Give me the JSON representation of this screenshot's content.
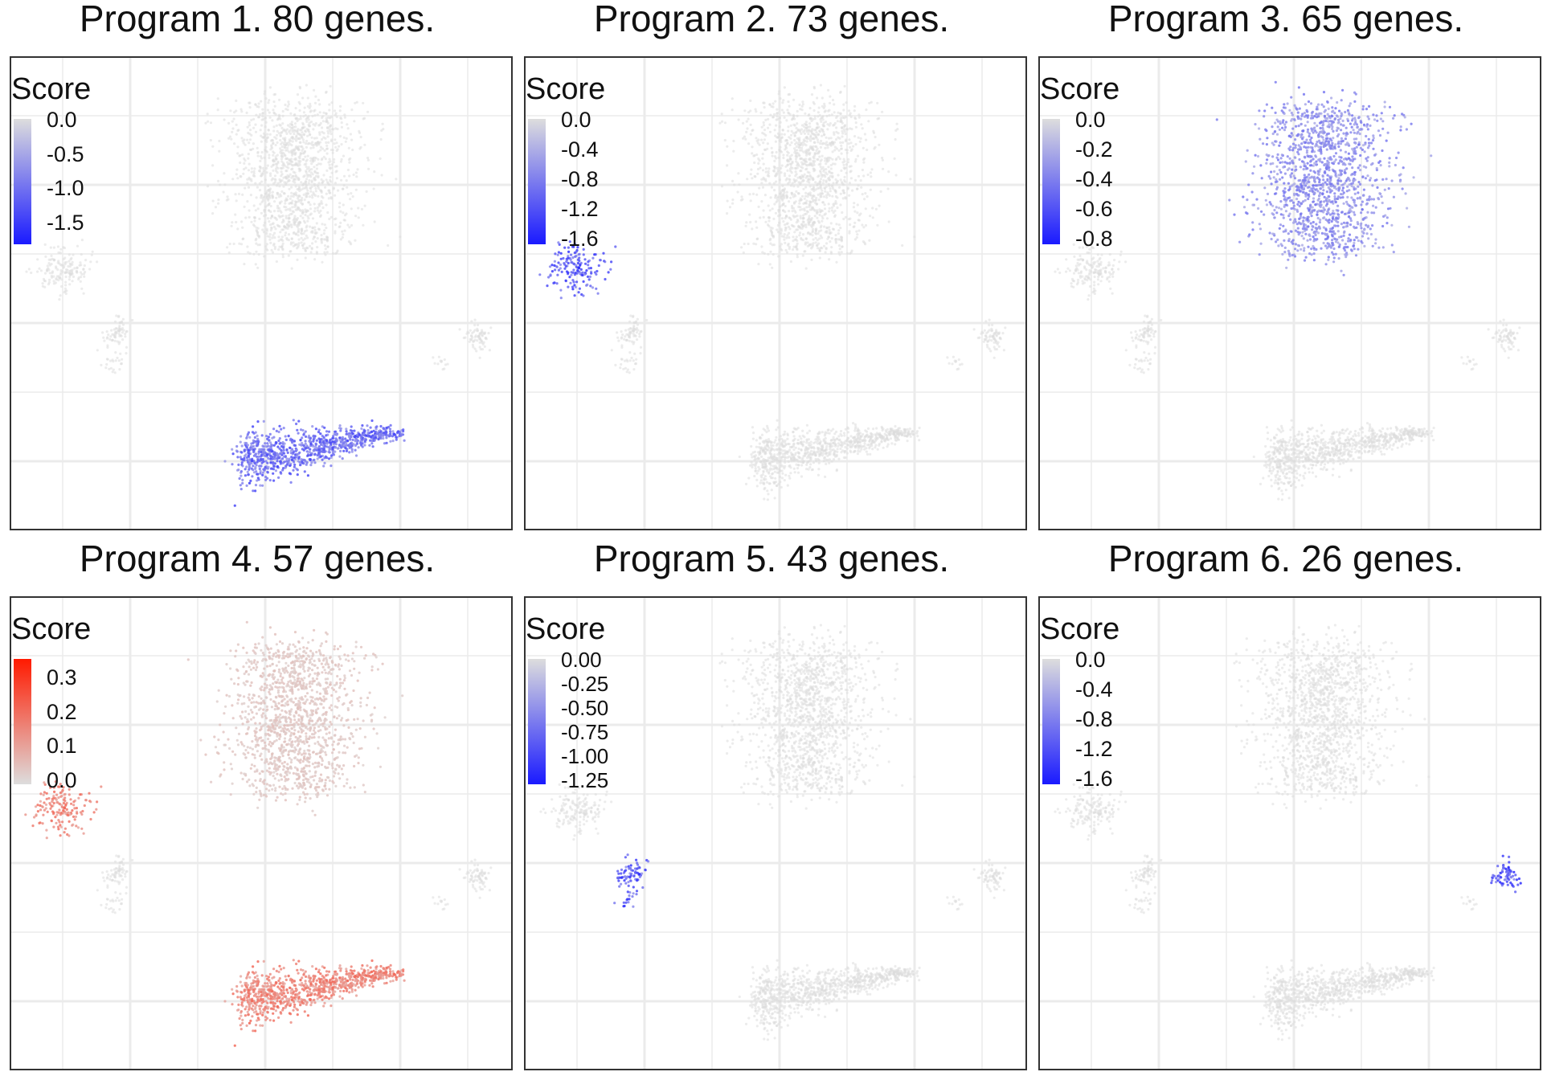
{
  "chart_data": [
    {
      "type": "scatter",
      "title": "Program 1. 80 genes.",
      "legend": {
        "title": "Score",
        "ticks": [
          "0.0",
          "-0.5",
          "-1.0",
          "-1.5"
        ],
        "high_color": "#dddddd",
        "low_color": "#1a1aff"
      },
      "highlight_cluster": "bottom-center",
      "highlight_intensity": 0.65,
      "grid": true,
      "axis_ticks_visible": false
    },
    {
      "type": "scatter",
      "title": "Program 2. 73 genes.",
      "legend": {
        "title": "Score",
        "ticks": [
          "0.0",
          "-0.4",
          "-0.8",
          "-1.2",
          "-1.6"
        ],
        "high_color": "#dddddd",
        "low_color": "#1a1aff"
      },
      "highlight_cluster": "left",
      "highlight_intensity": 0.75,
      "grid": true,
      "axis_ticks_visible": false
    },
    {
      "type": "scatter",
      "title": "Program 3. 65 genes.",
      "legend": {
        "title": "Score",
        "ticks": [
          "0.0",
          "-0.2",
          "-0.4",
          "-0.6",
          "-0.8"
        ],
        "high_color": "#dddddd",
        "low_color": "#1a1aff"
      },
      "highlight_cluster": "top-center",
      "highlight_intensity": 0.45,
      "grid": true,
      "axis_ticks_visible": false
    },
    {
      "type": "scatter",
      "title": "Program 4. 57 genes.",
      "legend": {
        "title": "Score",
        "ticks": [
          "0.3",
          "0.2",
          "0.1",
          "0.0"
        ],
        "high_color": "#ff1a00",
        "low_color": "#dddddd"
      },
      "highlight_cluster": "bottom-center+left",
      "highlight_intensity": 0.5,
      "grid": true,
      "axis_ticks_visible": false
    },
    {
      "type": "scatter",
      "title": "Program 5. 43 genes.",
      "legend": {
        "title": "Score",
        "ticks": [
          "0.00",
          "-0.25",
          "-0.50",
          "-0.75",
          "-1.00",
          "-1.25"
        ],
        "high_color": "#dddddd",
        "low_color": "#1a1aff"
      },
      "highlight_cluster": "lower-left-small",
      "highlight_intensity": 0.75,
      "grid": true,
      "axis_ticks_visible": false
    },
    {
      "type": "scatter",
      "title": "Program 6. 26 genes.",
      "legend": {
        "title": "Score",
        "ticks": [
          "0.0",
          "-0.4",
          "-0.8",
          "-1.2",
          "-1.6"
        ],
        "high_color": "#dddddd",
        "low_color": "#1a1aff"
      },
      "highlight_cluster": "right-small",
      "highlight_intensity": 0.8,
      "grid": true,
      "axis_ticks_visible": false
    }
  ]
}
